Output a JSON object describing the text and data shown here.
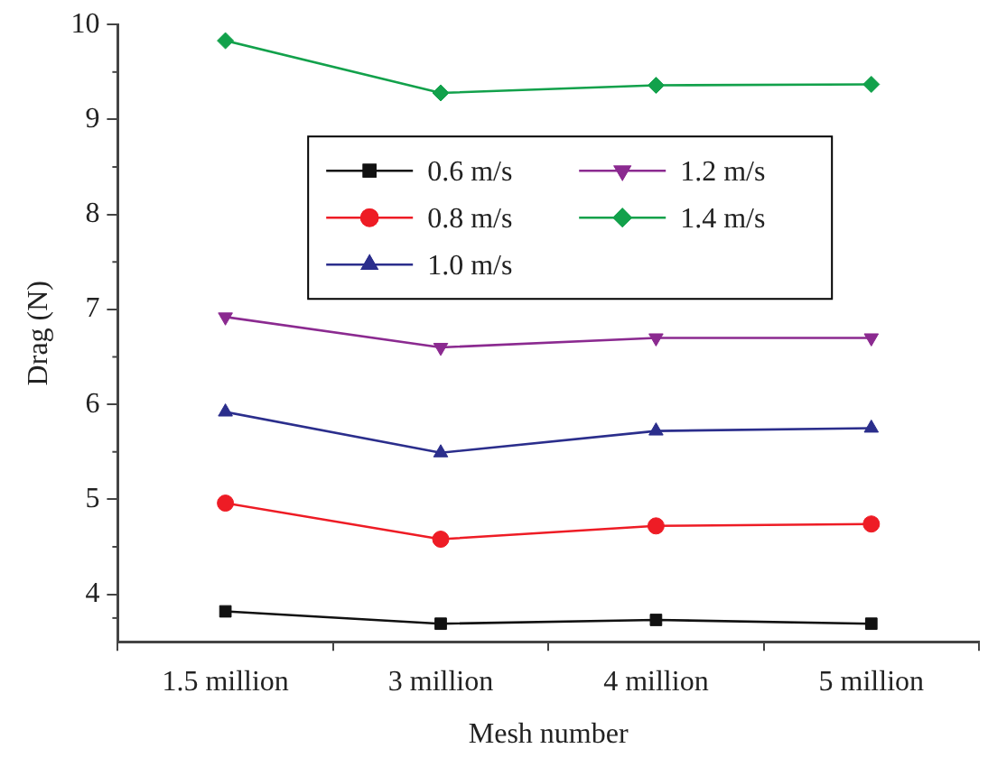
{
  "chart_data": {
    "type": "line",
    "xlabel": "Mesh number",
    "ylabel": "Drag (N)",
    "categories": [
      "1.5 million",
      "3 million",
      "4 million",
      "5 million"
    ],
    "ylim": [
      3.5,
      10
    ],
    "yticks": [
      4,
      5,
      6,
      7,
      8,
      9,
      10
    ],
    "grid": false,
    "legend": "top",
    "series": [
      {
        "name": "0.6 m/s",
        "color": "#111111",
        "marker": "square",
        "values": [
          3.82,
          3.69,
          3.73,
          3.69
        ]
      },
      {
        "name": "0.8 m/s",
        "color": "#ee1c25",
        "marker": "circle",
        "values": [
          4.96,
          4.58,
          4.72,
          4.74
        ]
      },
      {
        "name": "1.0 m/s",
        "color": "#2b2e8c",
        "marker": "triangle",
        "values": [
          5.92,
          5.49,
          5.72,
          5.75
        ]
      },
      {
        "name": "1.2 m/s",
        "color": "#8b2a90",
        "marker": "triangle-down",
        "values": [
          6.92,
          6.6,
          6.7,
          6.7
        ]
      },
      {
        "name": "1.4 m/s",
        "color": "#12a14b",
        "marker": "diamond",
        "values": [
          9.83,
          9.28,
          9.36,
          9.37
        ]
      }
    ]
  }
}
